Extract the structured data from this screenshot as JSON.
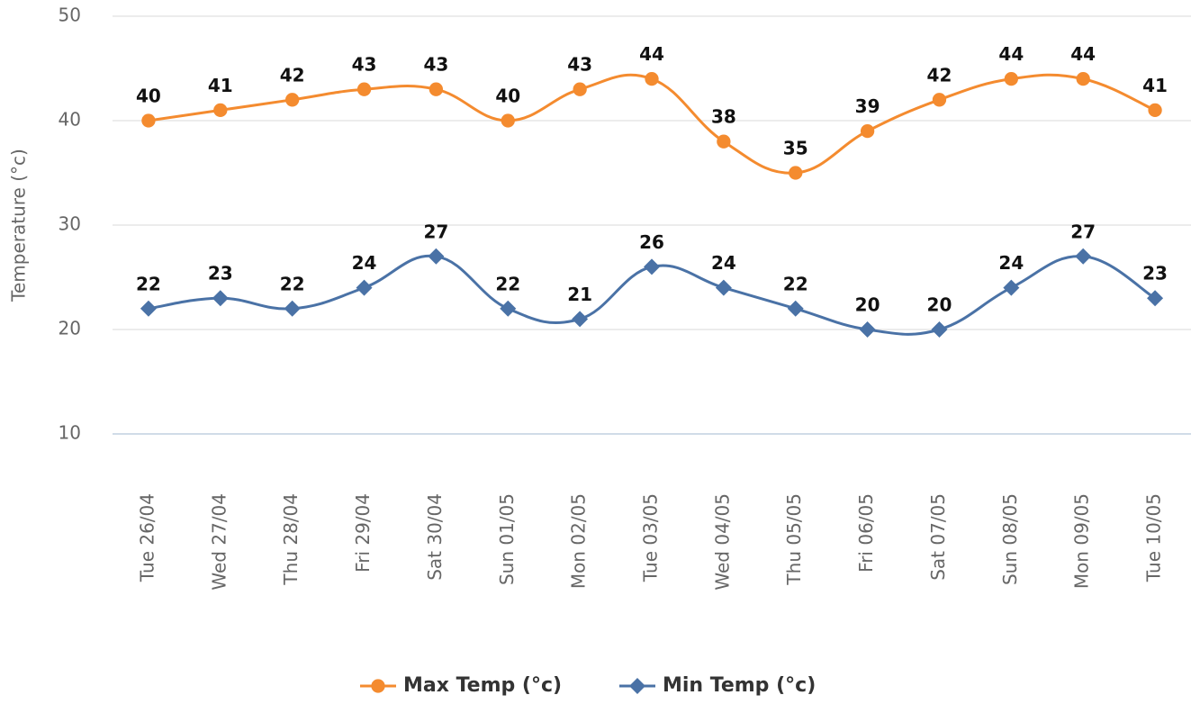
{
  "chart_data": {
    "type": "line",
    "y_label": "Temperature (°c)",
    "categories": [
      "Tue 26/04",
      "Wed 27/04",
      "Thu 28/04",
      "Fri 29/04",
      "Sat 30/04",
      "Sun 01/05",
      "Mon 02/05",
      "Tue 03/05",
      "Wed 04/05",
      "Thu 05/05",
      "Fri 06/05",
      "Sat 07/05",
      "Sun 08/05",
      "Mon 09/05",
      "Tue 10/05"
    ],
    "series": [
      {
        "name": "Max Temp (°c)",
        "color": "#f48b2f",
        "marker": "circle",
        "values": [
          40,
          41,
          42,
          43,
          43,
          40,
          43,
          44,
          38,
          35,
          39,
          42,
          44,
          44,
          41
        ]
      },
      {
        "name": "Min Temp (°c)",
        "color": "#4a72a6",
        "marker": "diamond",
        "values": [
          22,
          23,
          22,
          24,
          27,
          22,
          21,
          26,
          24,
          22,
          20,
          20,
          24,
          27,
          23
        ]
      }
    ],
    "ylim": [
      10,
      50
    ],
    "yticks": [
      10,
      20,
      30,
      40,
      50
    ],
    "grid": true,
    "smooth": true,
    "data_labels": true,
    "legend": "bottom"
  }
}
